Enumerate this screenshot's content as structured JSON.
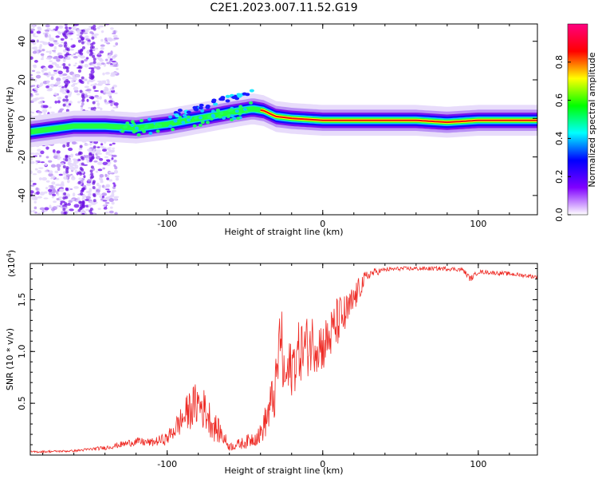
{
  "title": "C2E1.2023.007.11.52.G19",
  "chart_data": [
    {
      "type": "heatmap",
      "xlabel": "Height of straight line (km)",
      "ylabel": "Frequency (Hz)",
      "xlim": [
        -188,
        138
      ],
      "ylim": [
        -50,
        49
      ],
      "x_ticks": [
        -100,
        0,
        100
      ],
      "x_tick_labels": [
        "-100",
        "0",
        "100"
      ],
      "y_ticks": [
        -40,
        -20,
        0,
        20,
        40
      ],
      "y_tick_labels": [
        "-40",
        "-20",
        "0",
        "20",
        "40"
      ],
      "colorbar": {
        "label": "Normalized spectral amplitude",
        "range": [
          0,
          1
        ],
        "ticks": [
          0.0,
          0.2,
          0.4,
          0.6,
          0.8
        ],
        "tick_labels": [
          "0.0",
          "0.2",
          "0.4",
          "0.6",
          "0.8"
        ],
        "colors": [
          "#ffffff",
          "#8000ff",
          "#0000ff",
          "#00ffff",
          "#00ff00",
          "#ffff00",
          "#ff0000",
          "#ff0080"
        ]
      },
      "ridge_x": [
        -188,
        -160,
        -140,
        -120,
        -100,
        -80,
        -60,
        -45,
        -38,
        -30,
        -20,
        0,
        20,
        60,
        80,
        100,
        138
      ],
      "ridge_y": [
        -7,
        -4,
        -4,
        -5,
        -3,
        0,
        3,
        5,
        4,
        1,
        0,
        -1,
        -1,
        -1,
        -2,
        -1,
        -1
      ],
      "noise_region_x": [
        -188,
        -132
      ]
    },
    {
      "type": "line",
      "xlabel": "Height of straight line (km)",
      "ylabel": "SNR (10 * v/v)",
      "y_multiplier": "(x10",
      "y_multiplier_exp": "4",
      "y_multiplier_close": ")",
      "xlim": [
        -188,
        138
      ],
      "ylim": [
        0,
        1.85
      ],
      "x_ticks": [
        -100,
        0,
        100
      ],
      "x_tick_labels": [
        "-100",
        "0",
        "100"
      ],
      "y_ticks": [
        0.5,
        1.0,
        1.5
      ],
      "y_tick_labels": [
        "0.5",
        "1.0",
        "1.5"
      ],
      "series": [
        {
          "color": "#ee2a24",
          "x": [
            -188,
            -160,
            -140,
            -130,
            -120,
            -110,
            -100,
            -90,
            -85,
            -80,
            -75,
            -70,
            -65,
            -60,
            -50,
            -40,
            -35,
            -30,
            -27,
            -25,
            -20,
            -15,
            -10,
            -5,
            0,
            5,
            10,
            15,
            20,
            25,
            30,
            40,
            50,
            60,
            80,
            90,
            95,
            100,
            120,
            138
          ],
          "y": [
            0.03,
            0.04,
            0.07,
            0.1,
            0.13,
            0.12,
            0.16,
            0.35,
            0.45,
            0.5,
            0.42,
            0.28,
            0.2,
            0.08,
            0.12,
            0.2,
            0.4,
            0.65,
            1.25,
            0.7,
            0.85,
            1.0,
            1.05,
            1.1,
            1.05,
            1.15,
            1.3,
            1.35,
            1.5,
            1.65,
            1.75,
            1.79,
            1.8,
            1.8,
            1.8,
            1.79,
            1.7,
            1.77,
            1.75,
            1.72
          ],
          "noise": [
            0.01,
            0.01,
            0.02,
            0.03,
            0.04,
            0.04,
            0.06,
            0.15,
            0.2,
            0.22,
            0.2,
            0.15,
            0.1,
            0.04,
            0.06,
            0.1,
            0.2,
            0.3,
            0.35,
            0.3,
            0.3,
            0.3,
            0.3,
            0.3,
            0.25,
            0.25,
            0.25,
            0.2,
            0.15,
            0.1,
            0.05,
            0.02,
            0.02,
            0.02,
            0.02,
            0.02,
            0.03,
            0.02,
            0.02,
            0.02
          ]
        }
      ]
    }
  ]
}
